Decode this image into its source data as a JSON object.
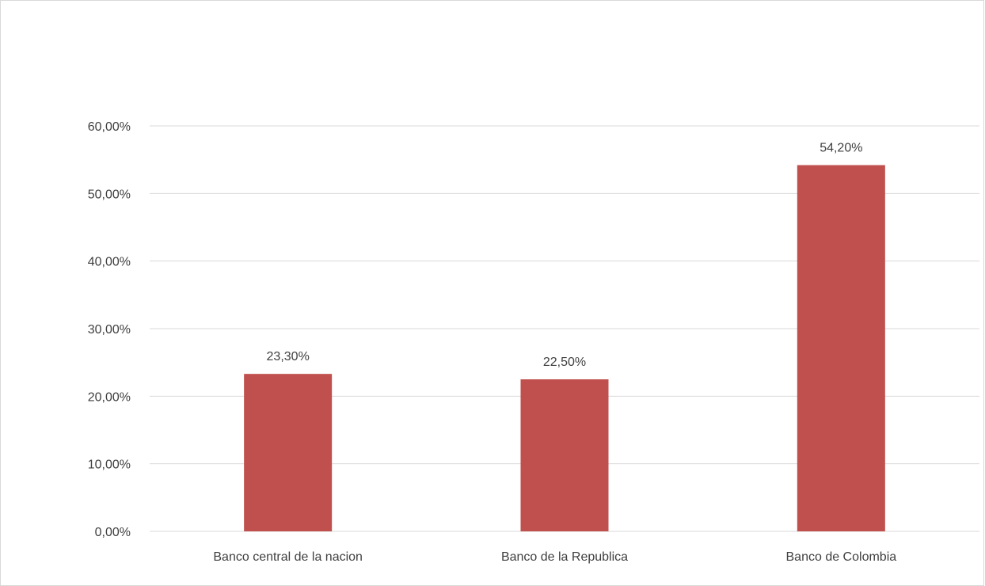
{
  "chart_data": {
    "type": "bar",
    "title": "",
    "xlabel": "",
    "ylabel": "",
    "categories": [
      "Banco central de la nacion",
      "Banco de la Republica",
      "Banco de Colombia"
    ],
    "values": [
      23.3,
      22.5,
      54.2
    ],
    "data_labels": [
      "23,30%",
      "22,50%",
      "54,20%"
    ],
    "ylim": [
      0,
      60
    ],
    "y_ticks": [
      {
        "value": 0,
        "label": "0,00%"
      },
      {
        "value": 10,
        "label": "10,00%"
      },
      {
        "value": 20,
        "label": "20,00%"
      },
      {
        "value": 30,
        "label": "30,00%"
      },
      {
        "value": 40,
        "label": "40,00%"
      },
      {
        "value": 50,
        "label": "50,00%"
      },
      {
        "value": 60,
        "label": "60,00%"
      }
    ],
    "grid": true,
    "legend": "none",
    "bar_color": "#c0504d",
    "grid_color": "#d9d9d9",
    "text_color": "#404040"
  }
}
